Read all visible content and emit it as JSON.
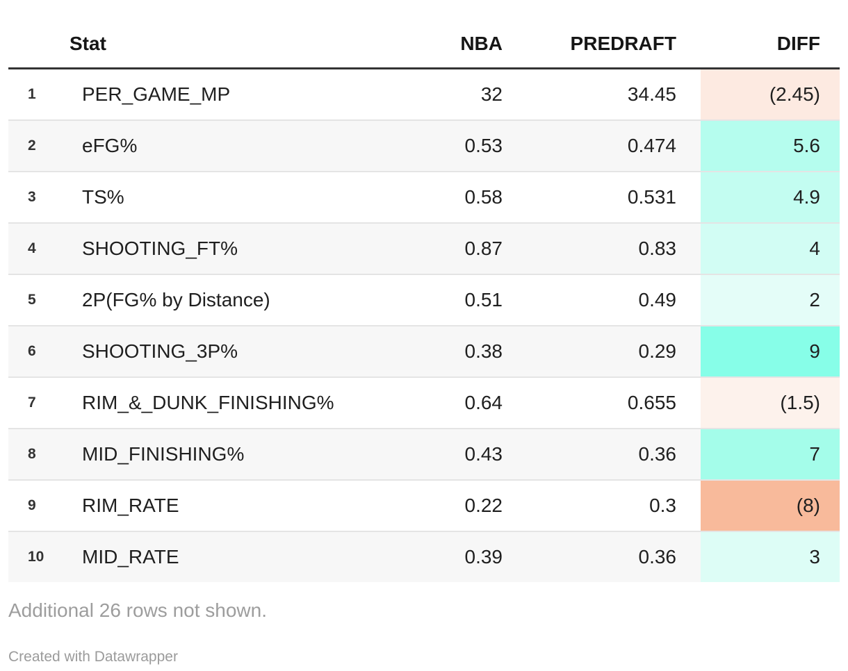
{
  "table": {
    "columns": [
      "Stat",
      "NBA",
      "PREDRAFT",
      "DIFF"
    ],
    "rows": [
      {
        "index": "1",
        "stat": "PER_GAME_MP",
        "nba": "32",
        "predraft": "34.45",
        "diff": "(2.45)",
        "diff_bg": "#fdeae1"
      },
      {
        "index": "2",
        "stat": "eFG%",
        "nba": "0.53",
        "predraft": "0.474",
        "diff": "5.6",
        "diff_bg": "#b5fdee"
      },
      {
        "index": "3",
        "stat": "TS%",
        "nba": "0.58",
        "predraft": "0.531",
        "diff": "4.9",
        "diff_bg": "#c3fdf1"
      },
      {
        "index": "4",
        "stat": "SHOOTING_FT%",
        "nba": "0.87",
        "predraft": "0.83",
        "diff": "4",
        "diff_bg": "#d2fdf4"
      },
      {
        "index": "5",
        "stat": "2P(FG% by Distance)",
        "nba": "0.51",
        "predraft": "0.49",
        "diff": "2",
        "diff_bg": "#e4fdf8"
      },
      {
        "index": "6",
        "stat": "SHOOTING_3P%",
        "nba": "0.38",
        "predraft": "0.29",
        "diff": "9",
        "diff_bg": "#87fee8"
      },
      {
        "index": "7",
        "stat": "RIM_&_DUNK_FINISHING%",
        "nba": "0.64",
        "predraft": "0.655",
        "diff": "(1.5)",
        "diff_bg": "#fdf2ec"
      },
      {
        "index": "8",
        "stat": "MID_FINISHING%",
        "nba": "0.43",
        "predraft": "0.36",
        "diff": "7",
        "diff_bg": "#a4fdea"
      },
      {
        "index": "9",
        "stat": "RIM_RATE",
        "nba": "0.22",
        "predraft": "0.3",
        "diff": "(8)",
        "diff_bg": "#f8ba9b"
      },
      {
        "index": "10",
        "stat": "MID_RATE",
        "nba": "0.39",
        "predraft": "0.36",
        "diff": "3",
        "diff_bg": "#ddfdf6"
      }
    ]
  },
  "footer": {
    "note": "Additional 26 rows not shown.",
    "credit": "Created with Datawrapper"
  },
  "colors": {
    "header_border": "#333333",
    "row_alt_bg": "#f7f7f7",
    "row_separator": "#e4e4e4",
    "positive_diff_strong": "#87fee8",
    "negative_diff_strong": "#f8ba9b",
    "footer_text": "#9d9d9d"
  },
  "chart_data": {
    "type": "table",
    "title": "",
    "columns": [
      "Stat",
      "NBA",
      "PREDRAFT",
      "DIFF"
    ],
    "rows": [
      {
        "stat": "PER_GAME_MP",
        "nba": 32,
        "predraft": 34.45,
        "diff": -2.45
      },
      {
        "stat": "eFG%",
        "nba": 0.53,
        "predraft": 0.474,
        "diff": 5.6
      },
      {
        "stat": "TS%",
        "nba": 0.58,
        "predraft": 0.531,
        "diff": 4.9
      },
      {
        "stat": "SHOOTING_FT%",
        "nba": 0.87,
        "predraft": 0.83,
        "diff": 4
      },
      {
        "stat": "2P(FG% by Distance)",
        "nba": 0.51,
        "predraft": 0.49,
        "diff": 2
      },
      {
        "stat": "SHOOTING_3P%",
        "nba": 0.38,
        "predraft": 0.29,
        "diff": 9
      },
      {
        "stat": "RIM_&_DUNK_FINISHING%",
        "nba": 0.64,
        "predraft": 0.655,
        "diff": -1.5
      },
      {
        "stat": "MID_FINISHING%",
        "nba": 0.43,
        "predraft": 0.36,
        "diff": 7
      },
      {
        "stat": "RIM_RATE",
        "nba": 0.22,
        "predraft": 0.3,
        "diff": -8
      },
      {
        "stat": "MID_RATE",
        "nba": 0.39,
        "predraft": 0.36,
        "diff": 3
      }
    ],
    "layout_hints": {
      "diff_color_scale": "negative values shown in parentheses with orange background, positive values with teal background scaled by magnitude",
      "note": "Additional 26 rows not shown.",
      "credit": "Created with Datawrapper"
    }
  }
}
